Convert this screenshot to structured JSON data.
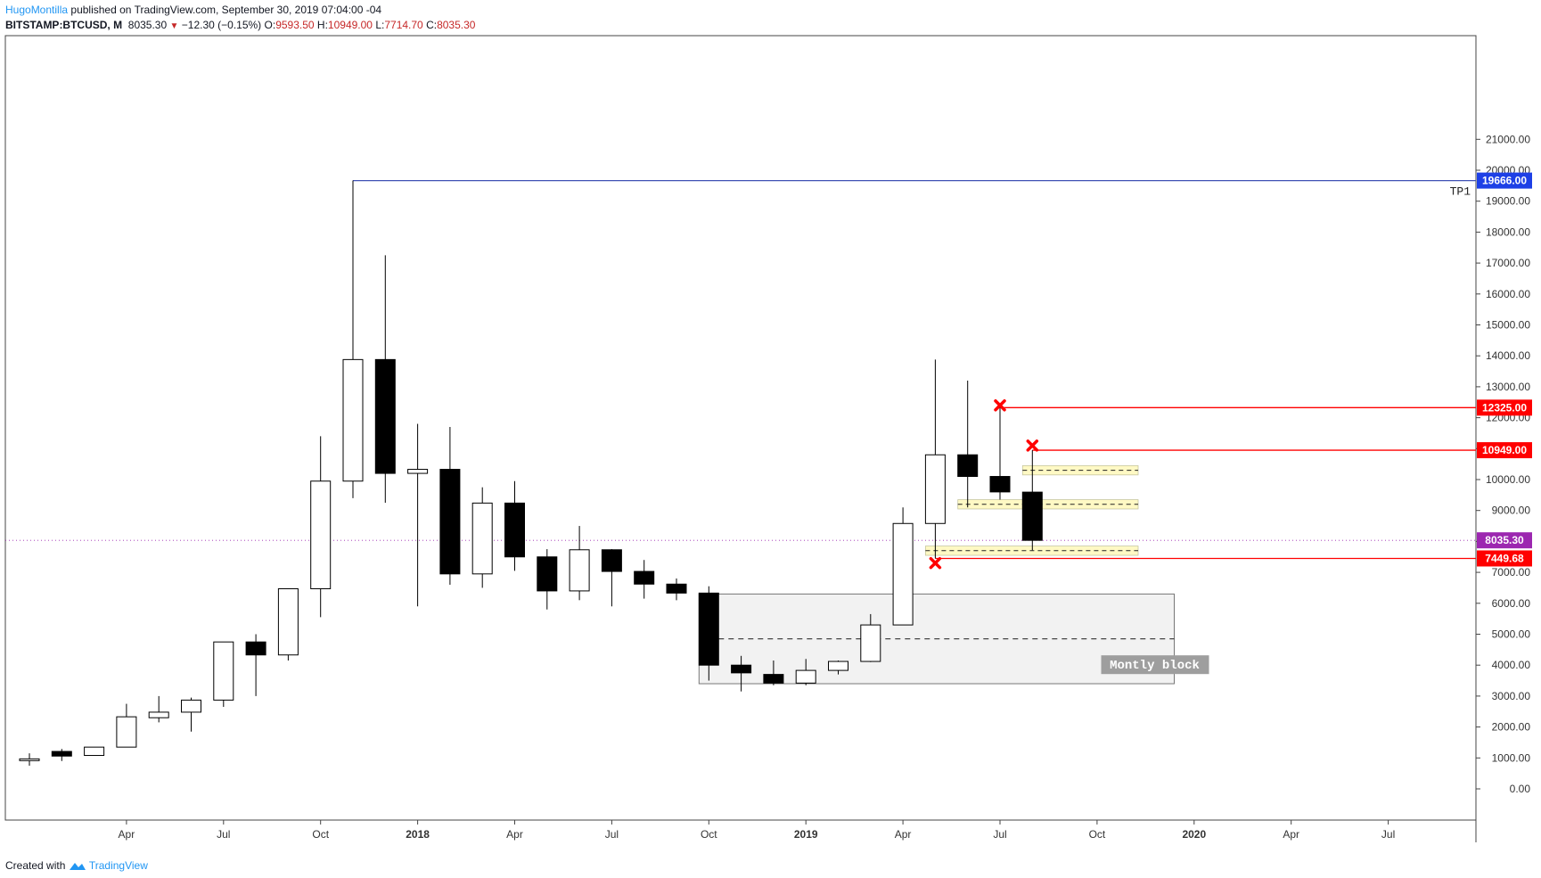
{
  "header": {
    "author": "HugoMontilla",
    "published": "published on TradingView.com, September 30, 2019 07:04:00 -04",
    "symbol": "BITSTAMP:BTCUSD, M",
    "price": "8035.30",
    "change": "−12.30 (−0.15%)",
    "o_label": "O:",
    "o_value": "9593.50",
    "h_label": "H:",
    "h_value": "10949.00",
    "l_label": "L:",
    "l_value": "7714.70",
    "c_label": "C:",
    "c_value": "8035.30"
  },
  "footer": {
    "created": "Created with",
    "brand": "TradingView"
  },
  "colors": {
    "tp_line": "#3f51b5",
    "tp_badge": "#1e40e6",
    "resistance": "#ff0000",
    "support_zone": "#fff9c4",
    "block_fill": "#f2f2f2",
    "current_price": "#9c27b0",
    "bull_candle": "#ffffff",
    "bear_candle": "#000000"
  },
  "chart_data": {
    "type": "candlestick",
    "timeframe": "monthly",
    "y_ticks": [
      0,
      1000,
      2000,
      3000,
      4000,
      5000,
      6000,
      7000,
      8000,
      9000,
      10000,
      11000,
      12000,
      13000,
      14000,
      15000,
      16000,
      17000,
      18000,
      19000,
      20000,
      21000
    ],
    "y_tick_labels": [
      "0.00",
      "1000.00",
      "2000.00",
      "3000.00",
      "4000.00",
      "5000.00",
      "6000.00",
      "7000.00",
      "8000.00",
      "9000.00",
      "10000.00",
      "11000.00",
      "12000.00",
      "13000.00",
      "14000.00",
      "15000.00",
      "16000.00",
      "17000.00",
      "18000.00",
      "19000.00",
      "20000.00",
      "21000.00"
    ],
    "x_ticks": [
      {
        "label": "Apr",
        "date": "2017-04"
      },
      {
        "label": "Jul",
        "date": "2017-07"
      },
      {
        "label": "Oct",
        "date": "2017-10"
      },
      {
        "label": "2018",
        "date": "2018-01"
      },
      {
        "label": "Apr",
        "date": "2018-04"
      },
      {
        "label": "Jul",
        "date": "2018-07"
      },
      {
        "label": "Oct",
        "date": "2018-10"
      },
      {
        "label": "2019",
        "date": "2019-01"
      },
      {
        "label": "Apr",
        "date": "2019-04"
      },
      {
        "label": "Jul",
        "date": "2019-07"
      },
      {
        "label": "Oct",
        "date": "2019-10"
      },
      {
        "label": "2020",
        "date": "2020-01"
      },
      {
        "label": "Apr",
        "date": "2020-04"
      },
      {
        "label": "Jul",
        "date": "2020-07"
      }
    ],
    "candles": [
      {
        "date": "2017-01",
        "o": 963,
        "h": 1150,
        "l": 750,
        "c": 970
      },
      {
        "date": "2017-02",
        "o": 1210,
        "h": 1290,
        "l": 900,
        "c": 1060
      },
      {
        "date": "2017-03",
        "o": 1080,
        "h": 1350,
        "l": 1070,
        "c": 1350
      },
      {
        "date": "2017-04",
        "o": 1350,
        "h": 2750,
        "l": 1350,
        "c": 2330
      },
      {
        "date": "2017-05",
        "o": 2300,
        "h": 3000,
        "l": 2150,
        "c": 2480
      },
      {
        "date": "2017-06",
        "o": 2480,
        "h": 2950,
        "l": 1850,
        "c": 2870
      },
      {
        "date": "2017-07",
        "o": 2870,
        "h": 4750,
        "l": 2650,
        "c": 4750
      },
      {
        "date": "2017-08",
        "o": 4750,
        "h": 5000,
        "l": 3000,
        "c": 4330
      },
      {
        "date": "2017-09",
        "o": 4330,
        "h": 6470,
        "l": 4150,
        "c": 6470
      },
      {
        "date": "2017-10",
        "o": 6470,
        "h": 11400,
        "l": 5550,
        "c": 9950
      },
      {
        "date": "2017-11",
        "o": 9950,
        "h": 19666,
        "l": 9400,
        "c": 13880
      },
      {
        "date": "2017-12",
        "o": 13880,
        "h": 17250,
        "l": 9250,
        "c": 10200
      },
      {
        "date": "2018-01",
        "o": 10200,
        "h": 11800,
        "l": 5900,
        "c": 10330
      },
      {
        "date": "2018-02",
        "o": 10330,
        "h": 11700,
        "l": 6600,
        "c": 6950
      },
      {
        "date": "2018-03",
        "o": 6950,
        "h": 9750,
        "l": 6500,
        "c": 9240
      },
      {
        "date": "2018-04",
        "o": 9240,
        "h": 9950,
        "l": 7050,
        "c": 7500
      },
      {
        "date": "2018-05",
        "o": 7500,
        "h": 7750,
        "l": 5800,
        "c": 6400
      },
      {
        "date": "2018-06",
        "o": 6400,
        "h": 8500,
        "l": 6100,
        "c": 7730
      },
      {
        "date": "2018-07",
        "o": 7730,
        "h": 7750,
        "l": 5900,
        "c": 7030
      },
      {
        "date": "2018-08",
        "o": 7030,
        "h": 7400,
        "l": 6150,
        "c": 6620
      },
      {
        "date": "2018-09",
        "o": 6620,
        "h": 6800,
        "l": 6100,
        "c": 6330
      },
      {
        "date": "2018-10",
        "o": 6330,
        "h": 6550,
        "l": 3500,
        "c": 4000
      },
      {
        "date": "2018-11",
        "o": 4000,
        "h": 4300,
        "l": 3150,
        "c": 3750
      },
      {
        "date": "2018-12",
        "o": 3700,
        "h": 4150,
        "l": 3350,
        "c": 3420
      },
      {
        "date": "2019-01",
        "o": 3420,
        "h": 4200,
        "l": 3350,
        "c": 3830
      },
      {
        "date": "2019-02",
        "o": 3830,
        "h": 4150,
        "l": 3700,
        "c": 4120
      },
      {
        "date": "2019-03",
        "o": 4120,
        "h": 5650,
        "l": 4100,
        "c": 5300
      },
      {
        "date": "2019-04",
        "o": 5300,
        "h": 9100,
        "l": 5300,
        "c": 8580
      },
      {
        "date": "2019-05",
        "o": 8580,
        "h": 13880,
        "l": 7450,
        "c": 10800
      },
      {
        "date": "2019-06",
        "o": 10800,
        "h": 13200,
        "l": 9100,
        "c": 10100
      },
      {
        "date": "2019-07",
        "o": 10100,
        "h": 12325,
        "l": 9350,
        "c": 9600
      },
      {
        "date": "2019-08",
        "o": 9593.5,
        "h": 10949,
        "l": 7714.7,
        "c": 8035.3
      }
    ],
    "levels": [
      {
        "name": "TP1",
        "price": 19666.0,
        "label": "19666.00",
        "start": "2017-11",
        "text": "TP1"
      },
      {
        "name": "resistance-1",
        "price": 12325.0,
        "label": "12325.00",
        "start": "2019-07"
      },
      {
        "name": "resistance-2",
        "price": 10949.0,
        "label": "10949.00",
        "start": "2019-08"
      },
      {
        "name": "stop",
        "price": 7449.68,
        "label": "7449.68",
        "start": "2019-05"
      },
      {
        "name": "current-price",
        "price": 8035.3,
        "label": "8035.30"
      }
    ],
    "support_zones": [
      {
        "low": 10150,
        "high": 10450,
        "mid": 10300,
        "start": "2019-08"
      },
      {
        "low": 9050,
        "high": 9350,
        "mid": 9200,
        "start": "2019-06"
      },
      {
        "low": 7550,
        "high": 7850,
        "mid": 7700,
        "start": "2019-05"
      }
    ],
    "monthly_block": {
      "low": 3400,
      "high": 6300,
      "mid": 4850,
      "start": "2018-10",
      "end": "2019-12",
      "label": "Montly block"
    },
    "x_marks": [
      {
        "date": "2019-05",
        "price": 7300
      },
      {
        "date": "2019-07",
        "price": 12400
      },
      {
        "date": "2019-08",
        "price": 11100
      }
    ]
  }
}
